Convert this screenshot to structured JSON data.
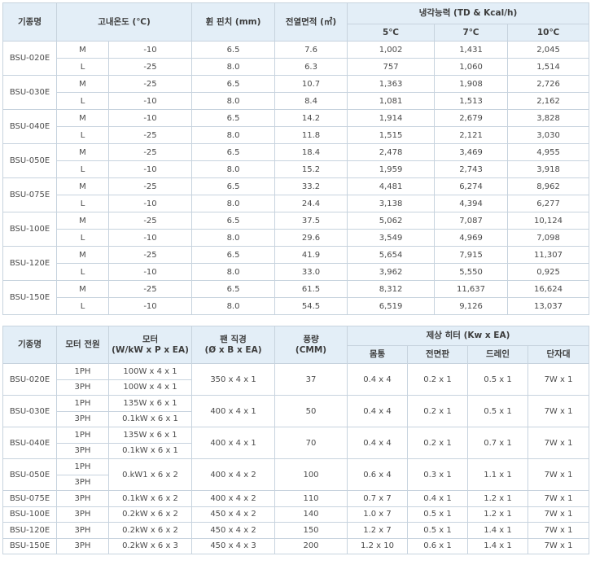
{
  "table1": {
    "headers": {
      "model": "기종명",
      "temp": "고내온도 (℃)",
      "fin_pitch": "휜 핀치 (mm)",
      "area": "전열면적 (㎡)",
      "cooling": "냉각능력 (TD & Kcal/h)",
      "td5": "5℃",
      "td7": "7℃",
      "td10": "10℃"
    },
    "rows": [
      {
        "model": "BSU-020E",
        "type": "M",
        "temp": "-10",
        "fin": "6.5",
        "area": "7.6",
        "c5": "1,002",
        "c7": "1,431",
        "c10": "2,045"
      },
      {
        "model": "",
        "type": "L",
        "temp": "-25",
        "fin": "8.0",
        "area": "6.3",
        "c5": "757",
        "c7": "1,060",
        "c10": "1,514"
      },
      {
        "model": "BSU-030E",
        "type": "M",
        "temp": "-25",
        "fin": "6.5",
        "area": "10.7",
        "c5": "1,363",
        "c7": "1,908",
        "c10": "2,726"
      },
      {
        "model": "",
        "type": "L",
        "temp": "-10",
        "fin": "8.0",
        "area": "8.4",
        "c5": "1,081",
        "c7": "1,513",
        "c10": "2,162"
      },
      {
        "model": "BSU-040E",
        "type": "M",
        "temp": "-10",
        "fin": "6.5",
        "area": "14.2",
        "c5": "1,914",
        "c7": "2,679",
        "c10": "3,828"
      },
      {
        "model": "",
        "type": "L",
        "temp": "-25",
        "fin": "8.0",
        "area": "11.8",
        "c5": "1,515",
        "c7": "2,121",
        "c10": "3,030"
      },
      {
        "model": "BSU-050E",
        "type": "M",
        "temp": "-25",
        "fin": "6.5",
        "area": "18.4",
        "c5": "2,478",
        "c7": "3,469",
        "c10": "4,955"
      },
      {
        "model": "",
        "type": "L",
        "temp": "-10",
        "fin": "8.0",
        "area": "15.2",
        "c5": "1,959",
        "c7": "2,743",
        "c10": "3,918"
      },
      {
        "model": "BSU-075E",
        "type": "M",
        "temp": "-25",
        "fin": "6.5",
        "area": "33.2",
        "c5": "4,481",
        "c7": "6,274",
        "c10": "8,962"
      },
      {
        "model": "",
        "type": "L",
        "temp": "-10",
        "fin": "8.0",
        "area": "24.4",
        "c5": "3,138",
        "c7": "4,394",
        "c10": "6,277"
      },
      {
        "model": "BSU-100E",
        "type": "M",
        "temp": "-25",
        "fin": "6.5",
        "area": "37.5",
        "c5": "5,062",
        "c7": "7,087",
        "c10": "10,124"
      },
      {
        "model": "",
        "type": "L",
        "temp": "-10",
        "fin": "8.0",
        "area": "29.6",
        "c5": "3,549",
        "c7": "4,969",
        "c10": "7,098"
      },
      {
        "model": "BSU-120E",
        "type": "M",
        "temp": "-25",
        "fin": "6.5",
        "area": "41.9",
        "c5": "5,654",
        "c7": "7,915",
        "c10": "11,307"
      },
      {
        "model": "",
        "type": "L",
        "temp": "-10",
        "fin": "8.0",
        "area": "33.0",
        "c5": "3,962",
        "c7": "5,550",
        "c10": "0,925"
      },
      {
        "model": "BSU-150E",
        "type": "M",
        "temp": "-25",
        "fin": "6.5",
        "area": "61.5",
        "c5": "8,312",
        "c7": "11,637",
        "c10": "16,624"
      },
      {
        "model": "",
        "type": "L",
        "temp": "-10",
        "fin": "8.0",
        "area": "54.5",
        "c5": "6,519",
        "c7": "9,126",
        "c10": "13,037"
      }
    ]
  },
  "table2": {
    "headers": {
      "model": "기종명",
      "power": "모터 전원",
      "motor_l1": "모터",
      "motor_l2": "(W/kW x P x EA)",
      "fan_l1": "팬 직경",
      "fan_l2": "(Ø x B x EA)",
      "air_l1": "풍량",
      "air_l2": "(CMM)",
      "defrost": "제상 히터 (Kw x EA)",
      "body": "몸통",
      "front": "전면판",
      "drain": "드레인",
      "terminal": "단자대"
    },
    "models": [
      {
        "model": "BSU-020E",
        "p1": "1PH",
        "m1": "100W x 4 x 1",
        "p2": "3PH",
        "m2": "100W x 4 x 1",
        "fan": "350 x 4 x 1",
        "air": "37",
        "body": "0.4 x 4",
        "front": "0.2 x 1",
        "drain": "0.5 x 1",
        "terminal": "7W x 1"
      },
      {
        "model": "BSU-030E",
        "p1": "1PH",
        "m1": "135W x 6 x 1",
        "p2": "3PH",
        "m2": "0.1kW x 6 x 1",
        "fan": "400 x 4 x 1",
        "air": "50",
        "body": "0.4 x 4",
        "front": "0.2 x 1",
        "drain": "0.5 x 1",
        "terminal": "7W x 1"
      },
      {
        "model": "BSU-040E",
        "p1": "1PH",
        "m1": "135W x 6 x 1",
        "p2": "3PH",
        "m2": "0.1kW x 6 x 1",
        "fan": "400 x 4 x 1",
        "air": "70",
        "body": "0.4 x 4",
        "front": "0.2 x 1",
        "drain": "0.7 x 1",
        "terminal": "7W x 1"
      },
      {
        "model": "BSU-050E",
        "p1": "1PH",
        "p2": "3PH",
        "m": "0.kW1 x 6 x 2",
        "fan": "400 x 4 x 2",
        "air": "100",
        "body": "0.6 x 4",
        "front": "0.3 x 1",
        "drain": "1.1 x 1",
        "terminal": "7W x 1"
      },
      {
        "model": "BSU-075E",
        "p": "3PH",
        "m": "0.1kW x 6 x 2",
        "fan": "400 x 4 x 2",
        "air": "110",
        "body": "0.7 x 7",
        "front": "0.4 x 1",
        "drain": "1.2 x 1",
        "terminal": "7W x 1"
      },
      {
        "model": "BSU-100E",
        "p": "3PH",
        "m": "0.2kW x 6 x 2",
        "fan": "450 x 4 x 2",
        "air": "140",
        "body": "1.0 x 7",
        "front": "0.5 x 1",
        "drain": "1.2 x 1",
        "terminal": "7W x 1"
      },
      {
        "model": "BSU-120E",
        "p": "3PH",
        "m": "0.2kW x 6 x 2",
        "fan": "450 x 4 x 2",
        "air": "150",
        "body": "1.2 x 7",
        "front": "0.5 x 1",
        "drain": "1.4 x 1",
        "terminal": "7W x 1"
      },
      {
        "model": "BSU-150E",
        "p": "3PH",
        "m": "0.2kW x 6 x 3",
        "fan": "450 x 4 x 3",
        "air": "200",
        "body": "1.2 x 10",
        "front": "0.6 x 1",
        "drain": "1.4 x 1",
        "terminal": "7W x 1"
      }
    ]
  }
}
